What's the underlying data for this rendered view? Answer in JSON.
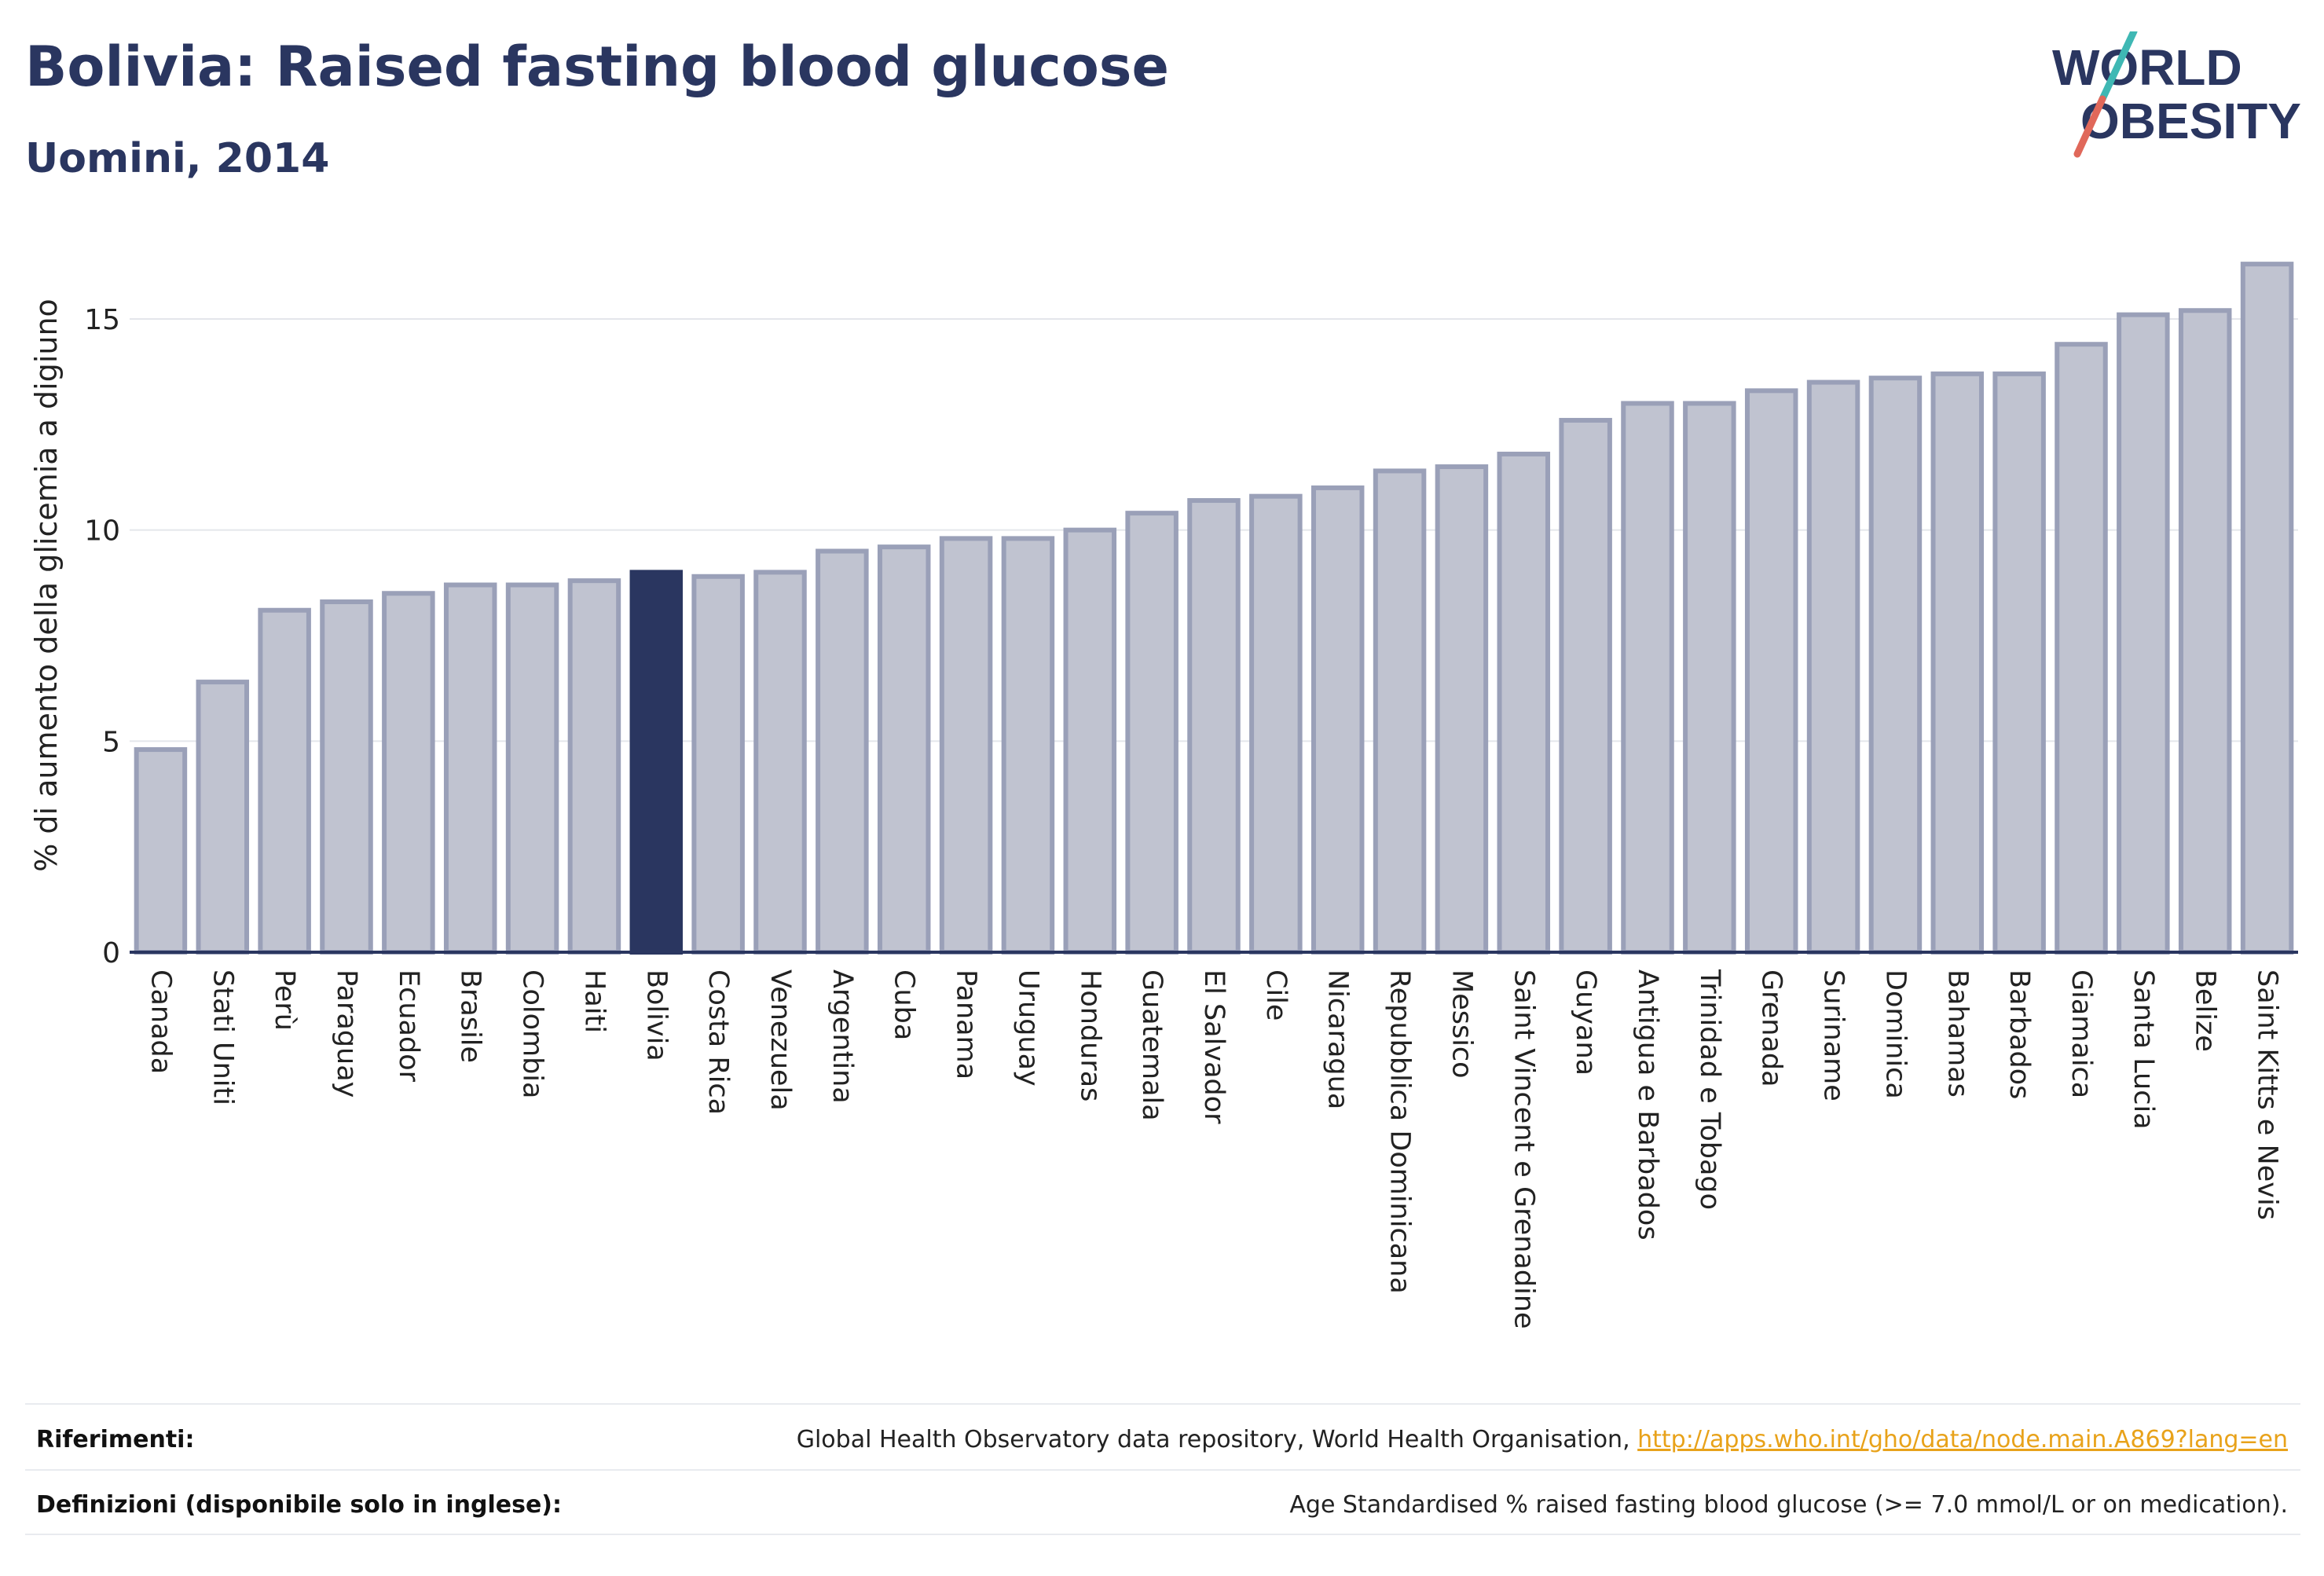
{
  "header": {
    "title": "Bolivia: Raised fasting blood glucose",
    "subtitle": "Uomini, 2014"
  },
  "logo": {
    "line1": "WORLD",
    "line2": "OBESITY",
    "colors": {
      "text": "#2a3660",
      "slash_teal": "#3fb8b4",
      "slash_red": "#e0685a"
    }
  },
  "colors": {
    "bar_fill": "#c0c3d0",
    "bar_stroke": "#9aa0b8",
    "highlight": "#2a3660",
    "grid": "#e4e6eb",
    "axis": "#2a3660"
  },
  "chart_data": {
    "type": "bar",
    "ylabel": "% di aumento della glicemia a digiuno",
    "ylim": [
      0,
      16.6
    ],
    "yticks": [
      0,
      5,
      10,
      15
    ],
    "grid": true,
    "highlight": "Bolivia",
    "categories": [
      "Canada",
      "Stati Uniti",
      "Perù",
      "Paraguay",
      "Ecuador",
      "Brasile",
      "Colombia",
      "Haiti",
      "Bolivia",
      "Costa Rica",
      "Venezuela",
      "Argentina",
      "Cuba",
      "Panama",
      "Uruguay",
      "Honduras",
      "Guatemala",
      "El Salvador",
      "Cile",
      "Nicaragua",
      "Repubblica Dominicana",
      "Messico",
      "Saint Vincent e Grenadine",
      "Guyana",
      "Antigua e Barbados",
      "Trinidad e Tobago",
      "Grenada",
      "Suriname",
      "Dominica",
      "Bahamas",
      "Barbados",
      "Giamaica",
      "Santa Lucia",
      "Belize",
      "Saint Kitts e Nevis"
    ],
    "values": [
      4.8,
      6.4,
      8.1,
      8.3,
      8.5,
      8.7,
      8.7,
      8.8,
      9.0,
      8.9,
      9.0,
      9.5,
      9.6,
      9.8,
      9.8,
      10.0,
      10.4,
      10.7,
      10.8,
      11.0,
      11.4,
      11.5,
      11.8,
      12.6,
      13.0,
      13.0,
      13.3,
      13.5,
      13.6,
      13.7,
      13.7,
      14.4,
      15.1,
      15.2,
      16.3
    ]
  },
  "footer": {
    "references_label": "Riferimenti:",
    "references_text": "Global Health Observatory data repository, World Health Organisation, ",
    "references_link": "http://apps.who.int/gho/data/node.main.A869?lang=en",
    "definitions_label": "Definizioni (disponibile solo in inglese):",
    "definitions_text": "Age Standardised % raised fasting blood glucose (>= 7.0 mmol/L or on medication)."
  }
}
